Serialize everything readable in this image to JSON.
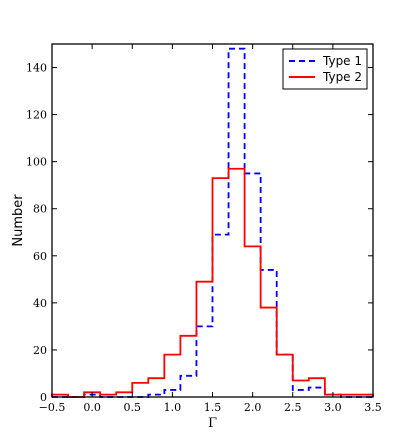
{
  "chart_data": {
    "type": "histogram",
    "xlabel": "Γ",
    "ylabel": "Number",
    "xlim": [
      -0.5,
      3.5
    ],
    "ylim": [
      0,
      150
    ],
    "xticks": [
      "−0.5",
      "0.0",
      "0.5",
      "1.0",
      "1.5",
      "2.0",
      "2.5",
      "3.0",
      "3.5"
    ],
    "xtick_values": [
      -0.5,
      0.0,
      0.5,
      1.0,
      1.5,
      2.0,
      2.5,
      3.0,
      3.5
    ],
    "yticks": [
      "0",
      "20",
      "40",
      "60",
      "80",
      "100",
      "120",
      "140"
    ],
    "ytick_values": [
      0,
      20,
      40,
      60,
      80,
      100,
      120,
      140
    ],
    "bin_edges": [
      -0.5,
      -0.3,
      -0.1,
      0.1,
      0.3,
      0.5,
      0.7,
      0.9,
      1.1,
      1.3,
      1.5,
      1.7,
      1.9,
      2.1,
      2.3,
      2.5,
      2.7,
      2.9,
      3.1,
      3.3,
      3.5
    ],
    "legend_position": "top-right",
    "grid": false,
    "series": [
      {
        "name": "Type 1",
        "color": "#0000ff",
        "linestyle": "dashed",
        "values": [
          0,
          0,
          1,
          0,
          0,
          0,
          1,
          3,
          9,
          30,
          69,
          148,
          95,
          54,
          18,
          3,
          4,
          1,
          0,
          0
        ]
      },
      {
        "name": "Type 2",
        "color": "#ff0000",
        "linestyle": "solid",
        "values": [
          1,
          0,
          2,
          1,
          2,
          6,
          8,
          18,
          26,
          49,
          93,
          97,
          64,
          38,
          18,
          7,
          8,
          1,
          1,
          1
        ]
      }
    ]
  }
}
